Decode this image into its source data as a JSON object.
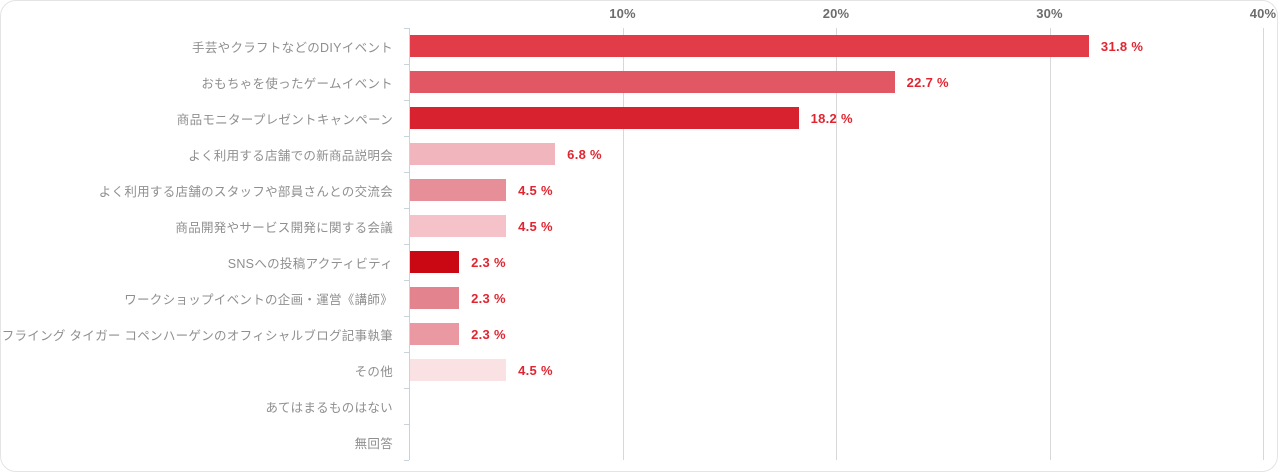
{
  "chart_data": {
    "type": "bar",
    "orientation": "horizontal",
    "title": "",
    "xlabel": "",
    "ylabel": "",
    "xlim": [
      0,
      40
    ],
    "grid": true,
    "legend": false,
    "categories": [
      "手芸やクラフトなどのDIYイベント",
      "おもちゃを使ったゲームイベント",
      "商品モニタープレゼントキャンペーン",
      "よく利用する店舗での新商品説明会",
      "よく利用する店舗のスタッフや部員さんとの交流会",
      "商品開発やサービス開発に関する会議",
      "SNSへの投稿アクティビティ",
      "ワークショップイベントの企画・運営《講師》",
      "フライング タイガー コペンハーゲンのオフィシャルブログ記事執筆",
      "その他",
      "あてはまるものはない",
      "無回答"
    ],
    "values": [
      31.8,
      22.7,
      18.2,
      6.8,
      4.5,
      4.5,
      2.3,
      2.3,
      2.3,
      4.5,
      0,
      0
    ],
    "value_labels": [
      "31.8 %",
      "22.7 %",
      "18.2 %",
      "6.8 %",
      "4.5 %",
      "4.5 %",
      "2.3 %",
      "2.3 %",
      "2.3 %",
      "4.5 %",
      "",
      ""
    ],
    "bar_colors": [
      "#e23c49",
      "#e15763",
      "#d9222f",
      "#f1b6bd",
      "#e78f98",
      "#f4c2c8",
      "#ca0813",
      "#e2838d",
      "#ea99a2",
      "#fae1e4",
      "",
      ""
    ],
    "x_ticks": [
      {
        "label": "10%",
        "value": 10
      },
      {
        "label": "20%",
        "value": 20
      },
      {
        "label": "30%",
        "value": 30
      },
      {
        "label": "40%",
        "value": 40
      }
    ]
  },
  "style": {
    "background": "#ffffff",
    "value_label_color": "#e02531",
    "category_label_color": "#8f8f8f",
    "tick_label_color": "#6d6d6d",
    "gridline_color": "#d8d8d8",
    "axis_color": "#c9d3da"
  }
}
